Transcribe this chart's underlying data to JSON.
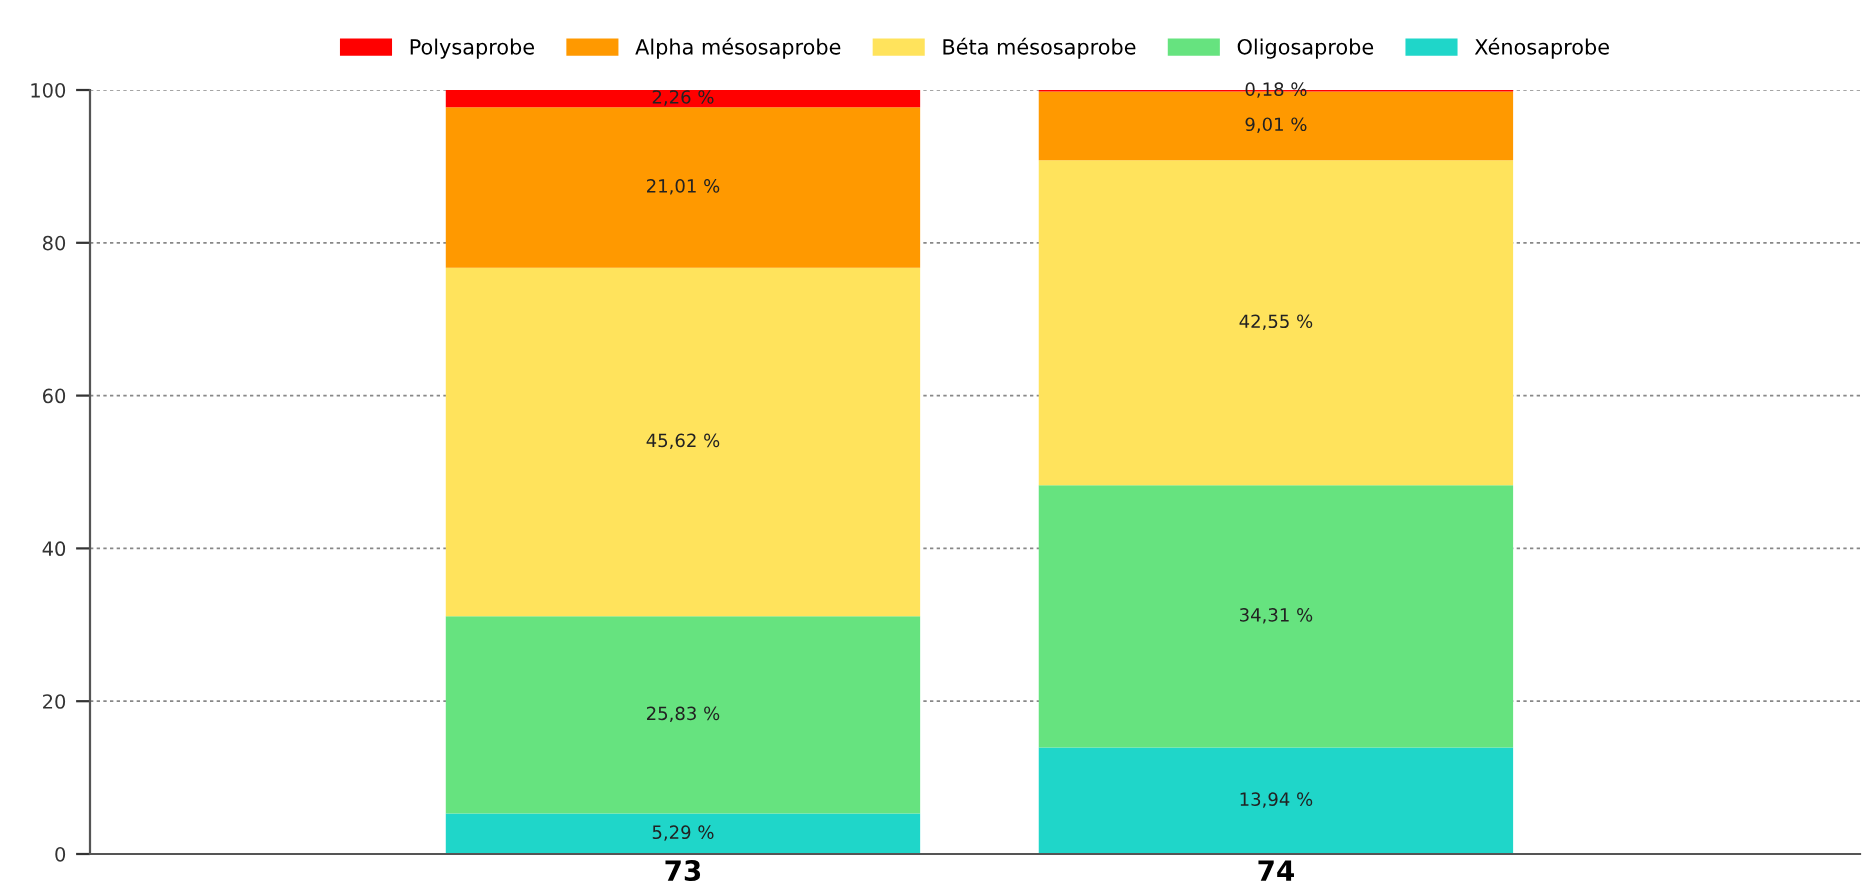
{
  "chart_data": {
    "type": "bar",
    "stacked": true,
    "categories": [
      "73",
      "74"
    ],
    "series": [
      {
        "name": "Xénosaprobe",
        "color": "#1fd6c9",
        "values": [
          5.29,
          13.94
        ],
        "value_labels": [
          "5,29 %",
          "13,94 %"
        ]
      },
      {
        "name": "Oligosaprobe",
        "color": "#66e37f",
        "values": [
          25.83,
          34.31
        ],
        "value_labels": [
          "25,83 %",
          "34,31 %"
        ]
      },
      {
        "name": "Béta mésosaprobe",
        "color": "#ffe35c",
        "values": [
          45.62,
          42.55
        ],
        "value_labels": [
          "45,62 %",
          "42,55 %"
        ]
      },
      {
        "name": "Alpha mésosaprobe",
        "color": "#ff9900",
        "values": [
          21.01,
          9.01
        ],
        "value_labels": [
          "21,01 %",
          "9,01 %"
        ]
      },
      {
        "name": "Polysaprobe",
        "color": "#ff0000",
        "values": [
          2.26,
          0.18
        ],
        "value_labels": [
          "2,26 %",
          "0,18 %"
        ]
      }
    ],
    "ylim": [
      0,
      100
    ],
    "yticks": [
      0,
      20,
      40,
      60,
      80,
      100
    ],
    "grid": "y",
    "legend": "top"
  }
}
